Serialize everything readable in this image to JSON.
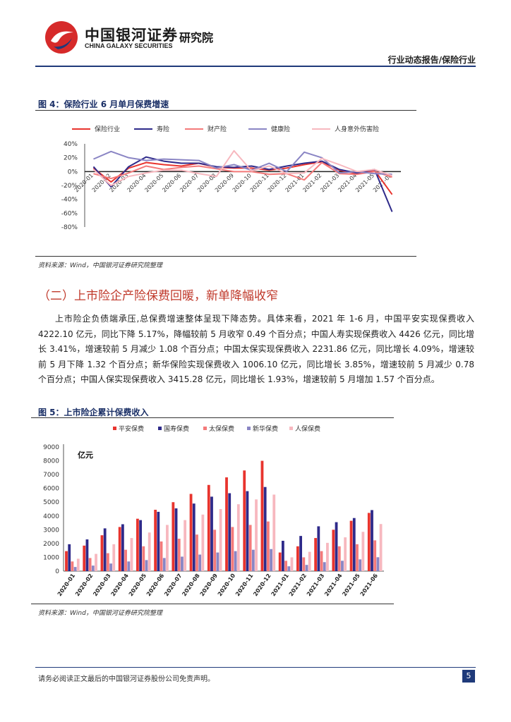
{
  "header": {
    "brand_cn": "中国银河证券",
    "brand_en": "CHINA GALAXY SECURITIES",
    "brand_institute": "研究院",
    "report_type": "行业动态报告/保险行业"
  },
  "figure4": {
    "title": "图 4：保险行业 6 月单月保费增速",
    "source": "资料来源：Wind，中国银河证券研究院整理",
    "chart_data": {
      "type": "line",
      "categories": [
        "2020-01",
        "2020-02",
        "2020-03",
        "2020-04",
        "2020-05",
        "2020-06",
        "2020-07",
        "2020-08",
        "2020-09",
        "2020-10",
        "2020-11",
        "2020-12",
        "2021-01",
        "2021-02",
        "2021-03",
        "2021-04",
        "2021-05",
        "2021-06"
      ],
      "y_ticks": [
        "40%",
        "20%",
        "0%",
        "-20%",
        "-40%",
        "-60%",
        "-80%"
      ],
      "ylim": [
        -80,
        40
      ],
      "series": [
        {
          "name": "保险行业",
          "color": "#e8342e",
          "values": [
            5,
            -15,
            5,
            13,
            10,
            8,
            12,
            6,
            5,
            5,
            2,
            5,
            10,
            14,
            2,
            -3,
            2,
            -33
          ]
        },
        {
          "name": "寿险",
          "color": "#2e2a8a",
          "values": [
            7,
            -22,
            7,
            21,
            15,
            12,
            12,
            7,
            6,
            8,
            3,
            8,
            12,
            15,
            3,
            -2,
            3,
            -58
          ]
        },
        {
          "name": "财产险",
          "color": "#f47a7a",
          "values": [
            -3,
            -10,
            -2,
            8,
            3,
            6,
            8,
            4,
            0,
            0,
            -4,
            -3,
            -12,
            13,
            -3,
            -4,
            0,
            -8
          ]
        },
        {
          "name": "健康险",
          "color": "#8a85c4",
          "values": [
            18,
            29,
            20,
            16,
            18,
            17,
            16,
            5,
            10,
            2,
            12,
            0,
            28,
            20,
            -2,
            0,
            -3,
            -4
          ]
        },
        {
          "name": "人身意外伤害险",
          "color": "#f7b8bf",
          "values": [
            3,
            -20,
            -7,
            -2,
            2,
            2,
            -3,
            -7,
            30,
            1,
            8,
            -3,
            -2,
            19,
            10,
            0,
            3,
            -6
          ]
        }
      ]
    }
  },
  "section": {
    "title": "（二）上市险企产险保费回暖，新单降幅收窄",
    "paragraph": "上市险企负债端承压,总保费增速整体呈现下降态势。具体来看，2021 年 1-6 月，中国平安实现保费收入 4222.10 亿元，同比下降 5.17%，降幅较前 5 月收窄 0.49 个百分点；中国人寿实现保费收入 4426 亿元，同比增长 3.41%，增速较前 5 月减少 1.08 个百分点；中国太保实现保费收入 2231.86 亿元，同比增长 4.09%，增速较前 5 月下降 1.32 个百分点；新华保险实现保费收入 1006.10 亿元，同比增长 3.85%，增速较前 5 月减少 0.78 个百分点；中国人保实现保费收入 3415.28 亿元，同比增长 1.93%，增速较前 5 月增加 1.57 个百分点。"
  },
  "figure5": {
    "title": "图 5：上市险企累计保费收入",
    "source": "资料来源：Wind，中国银河证券研究院整理",
    "chart_data": {
      "type": "bar",
      "unit_label": "亿元",
      "categories": [
        "2020-01",
        "2020-02",
        "2020-03",
        "2020-04",
        "2020-05",
        "2020-06",
        "2020-07",
        "2020-08",
        "2020-09",
        "2020-10",
        "2020-11",
        "2020-12",
        "2021-01",
        "2021-02",
        "2021-03",
        "2021-04",
        "2021-05",
        "2021-06"
      ],
      "y_ticks": [
        "9000",
        "8000",
        "7000",
        "6000",
        "5000",
        "4000",
        "3000",
        "2000",
        "1000",
        "0"
      ],
      "ylim": [
        0,
        9000
      ],
      "series": [
        {
          "name": "平安保费",
          "color": "#e8342e",
          "values": [
            1450,
            1850,
            2600,
            3200,
            3800,
            4450,
            5000,
            5600,
            6250,
            6800,
            7300,
            8000,
            1350,
            1800,
            2400,
            3000,
            3650,
            4222
          ]
        },
        {
          "name": "国寿保费",
          "color": "#2e2a8a",
          "values": [
            1950,
            2300,
            3100,
            3400,
            3700,
            4300,
            4550,
            4900,
            5400,
            5650,
            5800,
            6100,
            2200,
            2550,
            3250,
            3550,
            3850,
            4426
          ]
        },
        {
          "name": "太保保费",
          "color": "#f47a7a",
          "values": [
            700,
            950,
            1300,
            1550,
            1800,
            2150,
            2350,
            2650,
            3000,
            3200,
            3350,
            3600,
            750,
            1000,
            1450,
            1800,
            1950,
            2232
          ]
        },
        {
          "name": "新华保费",
          "color": "#8a85c4",
          "values": [
            300,
            400,
            550,
            700,
            800,
            950,
            1050,
            1200,
            1350,
            1450,
            1550,
            1600,
            350,
            450,
            650,
            750,
            850,
            1006
          ]
        },
        {
          "name": "人保保费",
          "color": "#f7b8bf",
          "values": [
            900,
            1250,
            1950,
            2400,
            2800,
            3350,
            3700,
            4100,
            4500,
            4850,
            5200,
            5550,
            1000,
            1400,
            2050,
            2450,
            2850,
            3415
          ]
        }
      ]
    }
  },
  "footer": {
    "disclaimer": "请务必阅读正文最后的中国银河证券股份公司免责声明。",
    "page_number": "5"
  }
}
